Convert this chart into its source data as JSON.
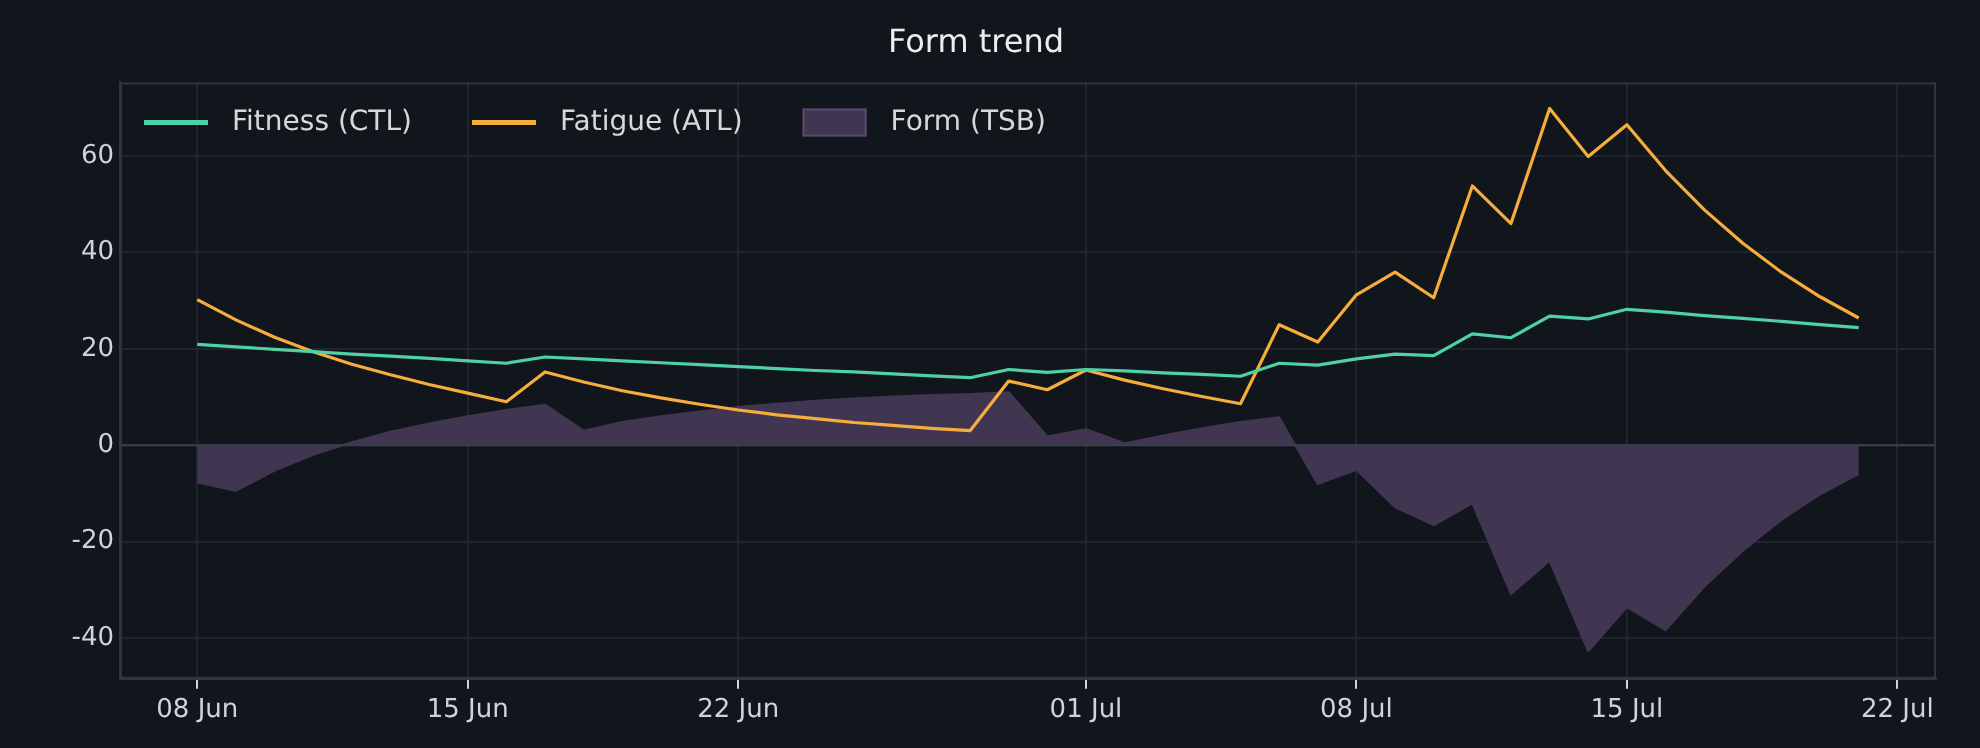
{
  "chart_data": {
    "type": "line",
    "title": "Form trend",
    "x": [
      "--06-08",
      "--06-09",
      "--06-10",
      "--06-11",
      "--06-12",
      "--06-13",
      "--06-14",
      "--06-15",
      "--06-16",
      "--06-17",
      "--06-18",
      "--06-19",
      "--06-20",
      "--06-21",
      "--06-22",
      "--06-23",
      "--06-24",
      "--06-25",
      "--06-26",
      "--06-27",
      "--06-28",
      "--06-29",
      "--06-30",
      "--07-01",
      "--07-02",
      "--07-03",
      "--07-04",
      "--07-05",
      "--07-06",
      "--07-07",
      "--07-08",
      "--07-09",
      "--07-10",
      "--07-11",
      "--07-12",
      "--07-13",
      "--07-14",
      "--07-15",
      "--07-16",
      "--07-17",
      "--07-18",
      "--07-19",
      "--07-20",
      "--07-21"
    ],
    "series": [
      {
        "name": "Fitness (CTL)",
        "color": "#4fd1a5",
        "values": [
          20.9,
          20.4,
          19.9,
          19.4,
          18.9,
          18.5,
          18.0,
          17.5,
          17.0,
          18.3,
          17.9,
          17.5,
          17.1,
          16.7,
          16.3,
          15.9,
          15.5,
          15.2,
          14.8,
          14.4,
          14.0,
          15.7,
          15.1,
          15.7,
          15.4,
          15.0,
          14.7,
          14.3,
          17.0,
          16.6,
          17.9,
          18.9,
          18.6,
          23.1,
          22.3,
          26.8,
          26.2,
          28.2,
          27.6,
          26.9,
          26.3,
          25.7,
          25.0,
          24.4
        ]
      },
      {
        "name": "Fatigue (ATL)",
        "color": "#f6ad3c",
        "values": [
          30.2,
          26.0,
          22.4,
          19.4,
          16.8,
          14.6,
          12.6,
          10.8,
          9.0,
          15.2,
          13.1,
          11.3,
          9.8,
          8.5,
          7.3,
          6.3,
          5.5,
          4.7,
          4.1,
          3.5,
          3.0,
          13.3,
          11.5,
          15.6,
          13.5,
          11.7,
          10.1,
          8.6,
          25.0,
          21.4,
          31.2,
          35.9,
          30.6,
          53.8,
          46.0,
          69.9,
          59.9,
          66.5,
          57.0,
          48.9,
          41.9,
          35.9,
          30.8,
          26.4
        ]
      },
      {
        "name": "Form (TSB)",
        "type": "area",
        "color": "#413651",
        "values": [
          -7.7,
          -9.5,
          -5.3,
          -2.0,
          0.6,
          2.8,
          4.5,
          6.0,
          7.3,
          8.4,
          3.0,
          4.8,
          6.0,
          7.0,
          7.9,
          8.6,
          9.2,
          9.7,
          10.1,
          10.4,
          10.6,
          11.0,
          1.8,
          3.3,
          0.4,
          2.0,
          3.5,
          4.8,
          5.8,
          -8.1,
          -5.1,
          -12.9,
          -16.6,
          -12.1,
          -30.9,
          -24.0,
          -42.8,
          -33.6,
          -38.4,
          -29.4,
          -21.9,
          -15.5,
          -10.2,
          -6.0
        ]
      }
    ],
    "xlim": [
      "--06-06",
      "--07-23"
    ],
    "xticks": [
      {
        "value": "--06-08",
        "label": "08 Jun"
      },
      {
        "value": "--06-15",
        "label": "15 Jun"
      },
      {
        "value": "--06-22",
        "label": "22 Jun"
      },
      {
        "value": "--07-01",
        "label": "01 Jul"
      },
      {
        "value": "--07-08",
        "label": "08 Jul"
      },
      {
        "value": "--07-15",
        "label": "15 Jul"
      },
      {
        "value": "--07-22",
        "label": "22 Jul"
      }
    ],
    "ylim": [
      -48.5,
      75.3
    ],
    "yticks": [
      -40,
      -20,
      0,
      20,
      40,
      60
    ],
    "ref_lines": [
      {
        "axis": "y",
        "value": 0,
        "color": "#3b404b"
      }
    ],
    "grid": true,
    "legend": "top left"
  }
}
